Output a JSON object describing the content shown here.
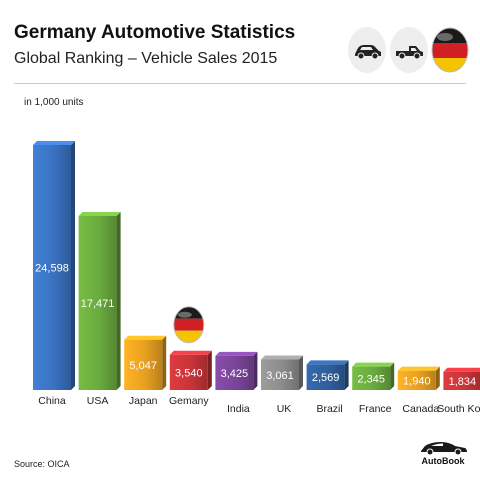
{
  "header": {
    "title": "Germany Automotive Statistics",
    "subtitle": "Global Ranking – Vehicle Sales 2015",
    "unit_note": "in 1,000 units"
  },
  "footer": {
    "source": "Source:  OICA",
    "logo_text": "AutoBook"
  },
  "icons": [
    "car-icon",
    "pickup-truck-icon",
    "germany-flag-icon"
  ],
  "chart_data": {
    "type": "bar",
    "title": "Global Ranking – Vehicle Sales 2015",
    "ylabel": "in 1,000 units",
    "xlabel": "",
    "categories": [
      "China",
      "USA",
      "Japan",
      "Gemany",
      "India",
      "UK",
      "Brazil",
      "France",
      "Canada",
      "South Korea"
    ],
    "values": [
      24598,
      17471,
      5047,
      3540,
      3425,
      3061,
      2569,
      2345,
      1940,
      1834
    ],
    "value_labels": [
      "24,598",
      "17,471",
      "5,047",
      "3,540",
      "3,425",
      "3,061",
      "2,569",
      "2,345",
      "1,940",
      "1,834"
    ],
    "colors": [
      "#3a72c0",
      "#6aaa3e",
      "#e8a020",
      "#c8343a",
      "#7a449a",
      "#8c8c8c",
      "#2f5f9c",
      "#6aaa3e",
      "#e8a020",
      "#c8343a"
    ],
    "highlight_category": "Gemany",
    "grid": false,
    "legend": "none"
  }
}
